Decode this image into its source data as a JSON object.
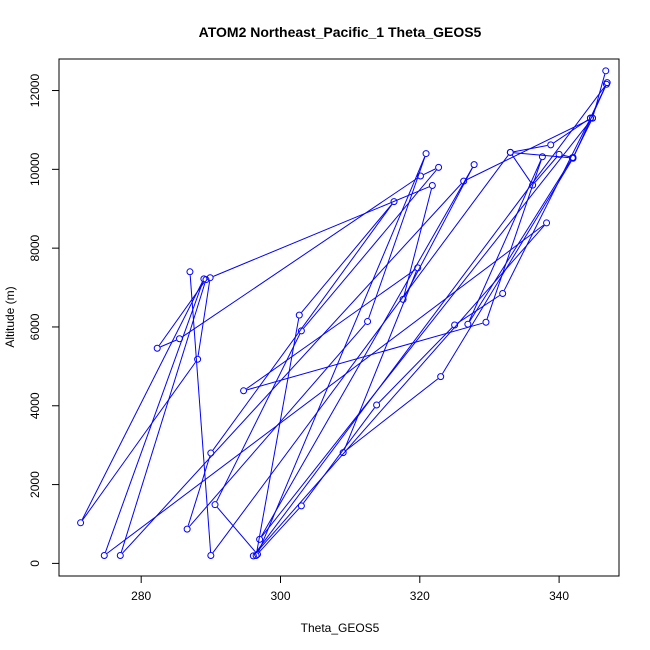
{
  "chart_data": {
    "type": "scatter",
    "title": "ATOM2 Northeast_Pacific_1 Theta_GEOS5",
    "xlabel": "Theta_GEOS5",
    "ylabel": "Altitude (m)",
    "xlim": [
      268.2,
      348.6
    ],
    "ylim": [
      -320,
      12800
    ],
    "xticks": [
      280,
      300,
      320,
      340
    ],
    "yticks": [
      0,
      2000,
      4000,
      6000,
      8000,
      10000,
      12000
    ],
    "grid": false,
    "line_color": "#0000ff",
    "series": [
      {
        "x": [
          346.7,
          344.8,
          342.0,
          340.0,
          336.2,
          333.0,
          338.8,
          344.5,
          346.9,
          344.5,
          331.9,
          325.0,
          313.8,
          303.0,
          296.5,
          302.7,
          316.3,
          290.0,
          286.6,
          312.5,
          320.9,
          296.7,
          290.6,
          303.0,
          322.7,
          320.1,
          285.5,
          282.3,
          289.3,
          277.0,
          326.3,
          344.8,
          297.0,
          327.8,
          317.6,
          321.8,
          289.9,
          288.1,
          271.3,
          289.0,
          274.7,
          338.2,
          296.1,
          346.8,
          342.0,
          323.0,
          309.0,
          319.7,
          294.7,
          329.5,
          337.6,
          326.9,
          341.9,
          333.0,
          290.0,
          287.0
        ],
        "y": [
          12500,
          11300,
          10300,
          10380,
          9600,
          10430,
          10620,
          11300,
          12200,
          11300,
          6850,
          6050,
          4020,
          1460,
          200,
          6300,
          9180,
          2800,
          870,
          6140,
          10400,
          230,
          1490,
          5900,
          10050,
          9830,
          5700,
          5460,
          7200,
          200,
          9700,
          11300,
          610,
          10120,
          6700,
          9590,
          7250,
          5180,
          1030,
          7220,
          200,
          8640,
          190,
          12160,
          10280,
          4740,
          2810,
          7500,
          4380,
          6120,
          10320,
          6070,
          10290,
          10430,
          200,
          7400
        ]
      }
    ]
  }
}
